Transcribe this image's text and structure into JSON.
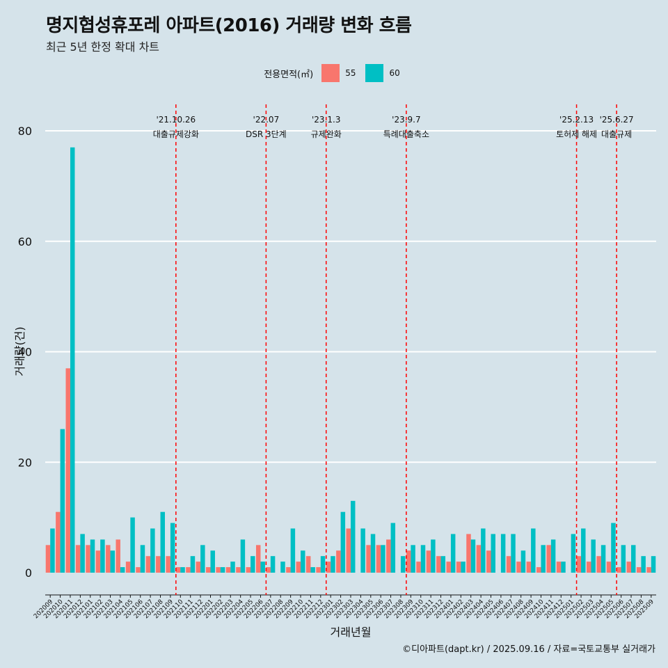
{
  "title": "명지협성휴포레 아파트(2016) 거래량 변화 흐름",
  "subtitle": "최근 5년 한정 확대 차트",
  "legend_title": "전용면적(㎡)",
  "caption": "©디아파트(dapt.kr) / 2025.09.16 / 자료=국토교통부 실거래가",
  "colors": {
    "background": "#d5e3ea",
    "s55": "#f8766d",
    "s60": "#00bfc4",
    "event_line": "#ff0000",
    "grid": "#ffffff"
  },
  "chart_data": {
    "type": "bar",
    "xlabel": "거래년월",
    "ylabel": "거래량(건)",
    "ylim": [
      -4,
      85
    ],
    "yticks": [
      0,
      20,
      40,
      60,
      80
    ],
    "grid": true,
    "legend_position": "top",
    "categories": [
      "202009",
      "202010",
      "202011",
      "202012",
      "202101",
      "202102",
      "202103",
      "202104",
      "202105",
      "202106",
      "202107",
      "202108",
      "202109",
      "202110",
      "202111",
      "202112",
      "202201",
      "202202",
      "202203",
      "202204",
      "202205",
      "202206",
      "202207",
      "202208",
      "202209",
      "202210",
      "202211",
      "202212",
      "202301",
      "202302",
      "202303",
      "202304",
      "202305",
      "202306",
      "202307",
      "202308",
      "202309",
      "202310",
      "202311",
      "202312",
      "202401",
      "202402",
      "202403",
      "202404",
      "202405",
      "202406",
      "202407",
      "202408",
      "202409",
      "202410",
      "202411",
      "202412",
      "202501",
      "202502",
      "202503",
      "202504",
      "202505",
      "202506",
      "202507",
      "202508",
      "202509"
    ],
    "series": [
      {
        "name": "55",
        "values": [
          5,
          11,
          37,
          5,
          5,
          4,
          5,
          6,
          2,
          1,
          3,
          3,
          3,
          1,
          1,
          2,
          1,
          1,
          1,
          1,
          1,
          5,
          1,
          0,
          1,
          2,
          3,
          1,
          2,
          4,
          8,
          0,
          5,
          5,
          6,
          0,
          4,
          2,
          4,
          3,
          2,
          2,
          7,
          5,
          4,
          0,
          3,
          2,
          2,
          1,
          5,
          2,
          0,
          3,
          2,
          3,
          2,
          1,
          2,
          1,
          1
        ]
      },
      {
        "name": "60",
        "values": [
          8,
          26,
          77,
          7,
          6,
          6,
          4,
          1,
          10,
          5,
          8,
          11,
          9,
          1,
          3,
          5,
          4,
          1,
          2,
          6,
          3,
          2,
          3,
          2,
          8,
          4,
          1,
          3,
          3,
          11,
          13,
          8,
          7,
          5,
          9,
          3,
          5,
          5,
          6,
          3,
          7,
          2,
          6,
          8,
          7,
          7,
          7,
          4,
          8,
          5,
          6,
          2,
          7,
          8,
          6,
          5,
          9,
          5,
          5,
          3,
          3
        ]
      }
    ],
    "events": [
      {
        "date": "'21.10.26",
        "label": "대출규제강화",
        "after": "202110"
      },
      {
        "date": "'22.07",
        "label": "DSR 3단계",
        "after": "202207"
      },
      {
        "date": "'23.1.3",
        "label": "규제완화",
        "after": "202301"
      },
      {
        "date": "'23.9.7",
        "label": "특례대출축소",
        "after": "202309"
      },
      {
        "date": "'25.2.13",
        "label": "토허제 해제",
        "after": "202502"
      },
      {
        "date": "'25.6.27",
        "label": "대출규제",
        "after": "202506"
      }
    ]
  }
}
